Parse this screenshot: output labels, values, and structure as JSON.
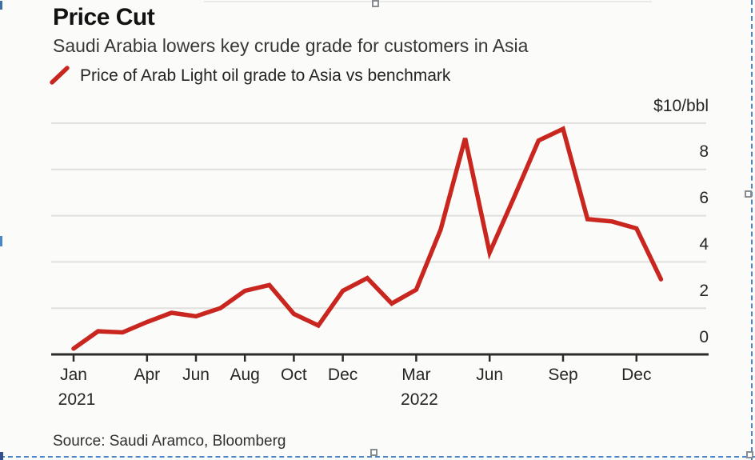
{
  "header": {
    "title": "Price Cut",
    "subtitle": "Saudi Arabia lowers key crude grade for customers in Asia"
  },
  "legend": {
    "label": "Price of Arab Light oil grade to Asia vs benchmark"
  },
  "source": "Source: Saudi Aramco, Bloomberg",
  "chart_data": {
    "type": "line",
    "title": "Price Cut",
    "subtitle": "Saudi Arabia lowers key crude grade for customers in Asia",
    "unit": "$/bbl",
    "ylabel": "$10/bbl",
    "ylim": [
      0,
      10.4
    ],
    "grid": "horizontal",
    "legend_position": "top-left",
    "x": [
      "Jan 2021",
      "Feb 2021",
      "Mar 2021",
      "Apr 2021",
      "May 2021",
      "Jun 2021",
      "Jul 2021",
      "Aug 2021",
      "Sep 2021",
      "Oct 2021",
      "Nov 2021",
      "Dec 2021",
      "Jan 2022",
      "Feb 2022",
      "Mar 2022",
      "Apr 2022",
      "May 2022",
      "Jun 2022",
      "Jul 2022",
      "Aug 2022",
      "Sep 2022",
      "Oct 2022",
      "Nov 2022",
      "Dec 2022",
      "Jan 2023"
    ],
    "series": [
      {
        "name": "Price of Arab Light oil grade to Asia vs benchmark",
        "values": [
          0.25,
          1.0,
          0.95,
          1.4,
          1.8,
          1.65,
          2.0,
          2.75,
          3.0,
          1.75,
          1.25,
          2.75,
          3.3,
          2.2,
          2.8,
          5.4,
          9.35,
          4.4,
          6.8,
          9.25,
          9.75,
          5.85,
          5.75,
          5.45,
          3.25
        ]
      }
    ],
    "yticks": [
      {
        "value": 0,
        "label": "0"
      },
      {
        "value": 2,
        "label": "2"
      },
      {
        "value": 4,
        "label": "4"
      },
      {
        "value": 6,
        "label": "6"
      },
      {
        "value": 8,
        "label": "8"
      },
      {
        "value": 10,
        "label": "$10/bbl"
      }
    ],
    "xticks": [
      {
        "month_index": 0,
        "label": "Jan",
        "year": "2021"
      },
      {
        "month_index": 3,
        "label": "Apr"
      },
      {
        "month_index": 5,
        "label": "Jun"
      },
      {
        "month_index": 7,
        "label": "Aug"
      },
      {
        "month_index": 9,
        "label": "Oct"
      },
      {
        "month_index": 11,
        "label": "Dec"
      },
      {
        "month_index": 14,
        "label": "Mar",
        "year": "2022"
      },
      {
        "month_index": 17,
        "label": "Jun"
      },
      {
        "month_index": 20,
        "label": "Sep"
      },
      {
        "month_index": 23,
        "label": "Dec"
      }
    ]
  },
  "theme": {
    "line_red": "#c9261f",
    "grid_gray": "#e1e0de",
    "axis_dark": "#2b2b2b",
    "text_dark": "#262626",
    "selection_blue": "#4a86c8",
    "background": "#fbfbf9"
  }
}
